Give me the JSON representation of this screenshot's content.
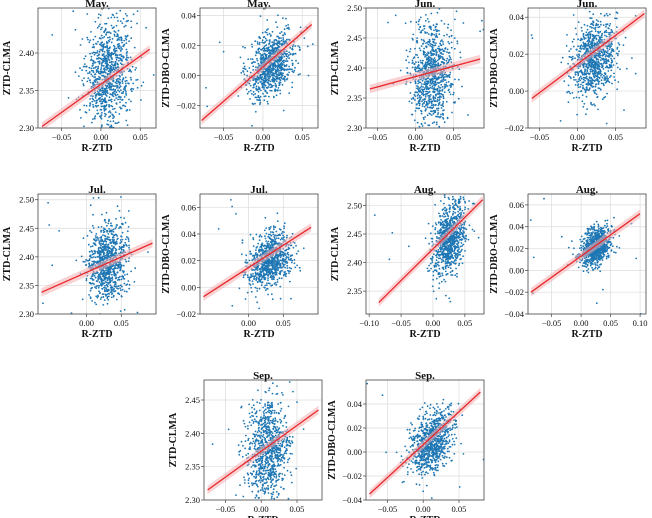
{
  "figure": {
    "colors": {
      "points": "#1f77b4",
      "fit_line": "#e8282c",
      "ci_band": "#f4aeb0",
      "grid": "#dcdcdc",
      "axes": "#444444"
    }
  },
  "chart_data": [
    {
      "type": "scatter",
      "title": "May.",
      "xlabel": "R-ZTD",
      "ylabel": "ZTD-CLMA",
      "xlim": [
        -0.08,
        0.07
      ],
      "ylim": [
        2.3,
        2.46
      ],
      "xticks": [
        -0.05,
        0.0,
        0.05
      ],
      "xtick_labels": [
        "−0.05",
        "0.00",
        "0.05"
      ],
      "yticks": [
        2.3,
        2.35,
        2.4
      ],
      "ytick_labels": [
        "2.30",
        "2.35",
        "2.40"
      ],
      "cloud": {
        "center_x": 0.01,
        "center_y": 2.37,
        "spread_x": 0.015,
        "spread_y": 0.035,
        "n": 900
      },
      "fit_line": {
        "x": [
          -0.075,
          0.062
        ],
        "y": [
          2.302,
          2.405
        ]
      },
      "grid": true
    },
    {
      "type": "scatter",
      "title": "May.",
      "xlabel": "R-ZTD",
      "ylabel": "ZTD-DBO-CLMA",
      "xlim": [
        -0.08,
        0.07
      ],
      "ylim": [
        -0.035,
        0.045
      ],
      "xticks": [
        -0.05,
        0.0,
        0.05
      ],
      "xtick_labels": [
        "−0.05",
        "0.00",
        "0.05"
      ],
      "yticks": [
        -0.02,
        0.0,
        0.02,
        0.04
      ],
      "ytick_labels": [
        "−0.02",
        "0.00",
        "0.02",
        "0.04"
      ],
      "cloud": {
        "center_x": 0.01,
        "center_y": 0.007,
        "spread_x": 0.015,
        "spread_y": 0.01,
        "n": 900
      },
      "fit_line": {
        "x": [
          -0.078,
          0.062
        ],
        "y": [
          -0.03,
          0.034
        ]
      },
      "grid": true
    },
    {
      "type": "scatter",
      "title": "Jun.",
      "xlabel": "R-ZTD",
      "ylabel": "ZTD-CLMA",
      "xlim": [
        -0.065,
        0.09
      ],
      "ylim": [
        2.3,
        2.5
      ],
      "xticks": [
        -0.05,
        0.0,
        0.05
      ],
      "xtick_labels": [
        "−0.05",
        "0.00",
        "0.05"
      ],
      "yticks": [
        2.3,
        2.35,
        2.4,
        2.45,
        2.5
      ],
      "ytick_labels": [
        "2.30",
        "2.35",
        "2.40",
        "2.45",
        "2.50"
      ],
      "cloud": {
        "center_x": 0.022,
        "center_y": 2.39,
        "spread_x": 0.014,
        "spread_y": 0.04,
        "n": 900
      },
      "fit_line": {
        "x": [
          -0.06,
          0.085
        ],
        "y": [
          2.365,
          2.415
        ]
      },
      "grid": true
    },
    {
      "type": "scatter",
      "title": "Jun.",
      "xlabel": "R-ZTD",
      "ylabel": "ZTD-DBO-CLMA",
      "xlim": [
        -0.065,
        0.09
      ],
      "ylim": [
        -0.02,
        0.045
      ],
      "xticks": [
        -0.05,
        0.0,
        0.05
      ],
      "xtick_labels": [
        "−0.05",
        "0.00",
        "0.05"
      ],
      "yticks": [
        -0.02,
        0.0,
        0.02,
        0.04
      ],
      "ytick_labels": [
        "−0.02",
        "0.00",
        "0.02",
        "0.04"
      ],
      "cloud": {
        "center_x": 0.022,
        "center_y": 0.018,
        "spread_x": 0.014,
        "spread_y": 0.01,
        "n": 900
      },
      "fit_line": {
        "x": [
          -0.06,
          0.088
        ],
        "y": [
          -0.004,
          0.042
        ]
      },
      "grid": true
    },
    {
      "type": "scatter",
      "title": "Jul.",
      "xlabel": "R-ZTD",
      "ylabel": "ZTD-CLMA",
      "xlim": [
        -0.07,
        0.1
      ],
      "ylim": [
        2.3,
        2.51
      ],
      "xticks": [
        0.0,
        0.05
      ],
      "xtick_labels": [
        "0.00",
        "0.05"
      ],
      "yticks": [
        2.3,
        2.35,
        2.4,
        2.45,
        2.5
      ],
      "ytick_labels": [
        "2.30",
        "2.35",
        "2.40",
        "2.45",
        "2.50"
      ],
      "cloud": {
        "center_x": 0.03,
        "center_y": 2.39,
        "spread_x": 0.015,
        "spread_y": 0.035,
        "n": 900
      },
      "fit_line": {
        "x": [
          -0.065,
          0.095
        ],
        "y": [
          2.338,
          2.424
        ]
      },
      "grid": true
    },
    {
      "type": "scatter",
      "title": "Jul.",
      "xlabel": "R-ZTD",
      "ylabel": "ZTD-DBO-CLMA",
      "xlim": [
        -0.07,
        0.1
      ],
      "ylim": [
        -0.02,
        0.07
      ],
      "xticks": [
        0.0,
        0.05
      ],
      "xtick_labels": [
        "0.00",
        "0.05"
      ],
      "yticks": [
        -0.02,
        0.0,
        0.02,
        0.04,
        0.06
      ],
      "ytick_labels": [
        "−0.02",
        "0.00",
        "0.02",
        "0.04",
        "0.06"
      ],
      "cloud": {
        "center_x": 0.03,
        "center_y": 0.02,
        "spread_x": 0.015,
        "spread_y": 0.01,
        "n": 900
      },
      "fit_line": {
        "x": [
          -0.065,
          0.09
        ],
        "y": [
          -0.007,
          0.045
        ]
      },
      "grid": true
    },
    {
      "type": "scatter",
      "title": "Aug.",
      "xlabel": "R-ZTD",
      "ylabel": "ZTD-CLMA",
      "xlim": [
        -0.105,
        0.08
      ],
      "ylim": [
        2.31,
        2.52
      ],
      "xticks": [
        -0.1,
        -0.05,
        0.0,
        0.05
      ],
      "xtick_labels": [
        "−0.10",
        "−0.05",
        "0.00",
        "0.05"
      ],
      "yticks": [
        2.35,
        2.4,
        2.45,
        2.5
      ],
      "ytick_labels": [
        "2.35",
        "2.40",
        "2.45",
        "2.50"
      ],
      "cloud": {
        "center_x": 0.025,
        "center_y": 2.44,
        "spread_x": 0.013,
        "spread_y": 0.03,
        "n": 900
      },
      "fit_line": {
        "x": [
          -0.085,
          0.078
        ],
        "y": [
          2.33,
          2.51
        ]
      },
      "grid": true
    },
    {
      "type": "scatter",
      "title": "Aug.",
      "xlabel": "R-ZTD",
      "ylabel": "ZTD-DBO-CLMA",
      "xlim": [
        -0.09,
        0.11
      ],
      "ylim": [
        -0.04,
        0.07
      ],
      "xticks": [
        -0.05,
        0.0,
        0.05,
        0.1
      ],
      "xtick_labels": [
        "−0.05",
        "0.00",
        "0.05",
        "0.10"
      ],
      "yticks": [
        -0.04,
        -0.02,
        0.0,
        0.02,
        0.04,
        0.06
      ],
      "ytick_labels": [
        "−0.04",
        "−0.02",
        "0.00",
        "0.02",
        "0.04",
        "0.06"
      ],
      "cloud": {
        "center_x": 0.025,
        "center_y": 0.022,
        "spread_x": 0.013,
        "spread_y": 0.008,
        "n": 900
      },
      "fit_line": {
        "x": [
          -0.085,
          0.1
        ],
        "y": [
          -0.02,
          0.052
        ]
      },
      "grid": true
    },
    {
      "type": "scatter",
      "title": "Sep.",
      "xlabel": "R-ZTD",
      "ylabel": "ZTD-CLMA",
      "xlim": [
        -0.08,
        0.085
      ],
      "ylim": [
        2.3,
        2.48
      ],
      "xticks": [
        -0.05,
        0.0,
        0.05
      ],
      "xtick_labels": [
        "−0.05",
        "0.00",
        "0.05"
      ],
      "yticks": [
        2.3,
        2.35,
        2.4,
        2.45
      ],
      "ytick_labels": [
        "2.30",
        "2.35",
        "2.40",
        "2.45"
      ],
      "cloud": {
        "center_x": 0.01,
        "center_y": 2.375,
        "spread_x": 0.015,
        "spread_y": 0.04,
        "n": 900
      },
      "fit_line": {
        "x": [
          -0.075,
          0.08
        ],
        "y": [
          2.315,
          2.435
        ]
      },
      "grid": true
    },
    {
      "type": "scatter",
      "title": "Sep.",
      "xlabel": "R-ZTD",
      "ylabel": "ZTD-DBO-CLMA",
      "xlim": [
        -0.08,
        0.085
      ],
      "ylim": [
        -0.04,
        0.06
      ],
      "xticks": [
        -0.05,
        0.0,
        0.05
      ],
      "xtick_labels": [
        "−0.05",
        "0.00",
        "0.05"
      ],
      "yticks": [
        -0.04,
        -0.02,
        0.0,
        0.02,
        0.04
      ],
      "ytick_labels": [
        "−0.04",
        "−0.02",
        "0.00",
        "0.02",
        "0.04"
      ],
      "cloud": {
        "center_x": 0.012,
        "center_y": 0.008,
        "spread_x": 0.015,
        "spread_y": 0.012,
        "n": 900
      },
      "fit_line": {
        "x": [
          -0.075,
          0.08
        ],
        "y": [
          -0.035,
          0.05
        ]
      },
      "grid": true
    }
  ]
}
